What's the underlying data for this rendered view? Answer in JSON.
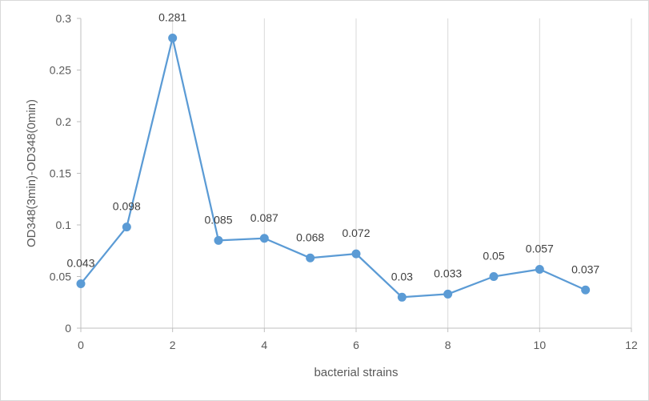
{
  "chart_data": {
    "type": "scatter",
    "title": "",
    "xlabel": "bacterial strains",
    "ylabel": "OD348(3min)-OD348(0min)",
    "xlim": [
      0,
      12
    ],
    "ylim": [
      0,
      0.3
    ],
    "xticks": [
      0,
      2,
      4,
      6,
      8,
      10,
      12
    ],
    "yticks": [
      0,
      0.05,
      0.1,
      0.15,
      0.2,
      0.25,
      0.3
    ],
    "grid": "vertical",
    "legend": "none",
    "series": [
      {
        "color": "#5b9bd5",
        "marker": "circle",
        "line": "straight",
        "x": [
          0,
          1,
          2,
          3,
          4,
          5,
          6,
          7,
          8,
          9,
          10,
          11
        ],
        "y": [
          0.043,
          0.098,
          0.281,
          0.085,
          0.087,
          0.068,
          0.072,
          0.03,
          0.033,
          0.05,
          0.057,
          0.037
        ],
        "labels": [
          "0.043",
          "0.098",
          "0.281",
          "0.085",
          "0.087",
          "0.068",
          "0.072",
          "0.03",
          "0.033",
          "0.05",
          "0.057",
          "0.037"
        ]
      }
    ]
  }
}
